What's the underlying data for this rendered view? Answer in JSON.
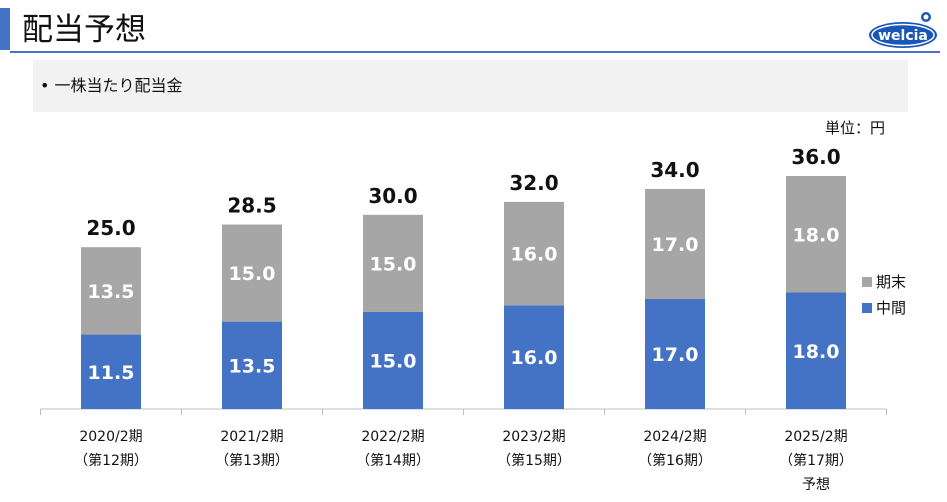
{
  "page": {
    "title": "配当予想",
    "subtitle": "• 一株当たり配当金",
    "unit": "単位：円",
    "logo_text": "welcia"
  },
  "colors": {
    "accent": "#4472c4",
    "interim": "#4472c4",
    "year_end": "#a6a6a6",
    "logo_blue": "#1a56b8"
  },
  "chart_data": {
    "type": "bar",
    "stacked": true,
    "categories": [
      [
        "2020/2期",
        "（第12期）"
      ],
      [
        "2021/2期",
        "（第13期）"
      ],
      [
        "2022/2期",
        "（第14期）"
      ],
      [
        "2023/2期",
        "（第15期）"
      ],
      [
        "2024/2期",
        "（第16期）"
      ],
      [
        "2025/2期",
        "（第17期）",
        "予想"
      ]
    ],
    "series": [
      {
        "name": "中間",
        "color": "#4472c4",
        "values": [
          11.5,
          13.5,
          15.0,
          16.0,
          17.0,
          18.0
        ]
      },
      {
        "name": "期末",
        "color": "#a6a6a6",
        "values": [
          13.5,
          15.0,
          15.0,
          16.0,
          17.0,
          18.0
        ]
      }
    ],
    "totals": [
      25.0,
      28.5,
      30.0,
      32.0,
      34.0,
      36.0
    ],
    "ylim": [
      0,
      36
    ],
    "legend": "right",
    "grid": false
  }
}
